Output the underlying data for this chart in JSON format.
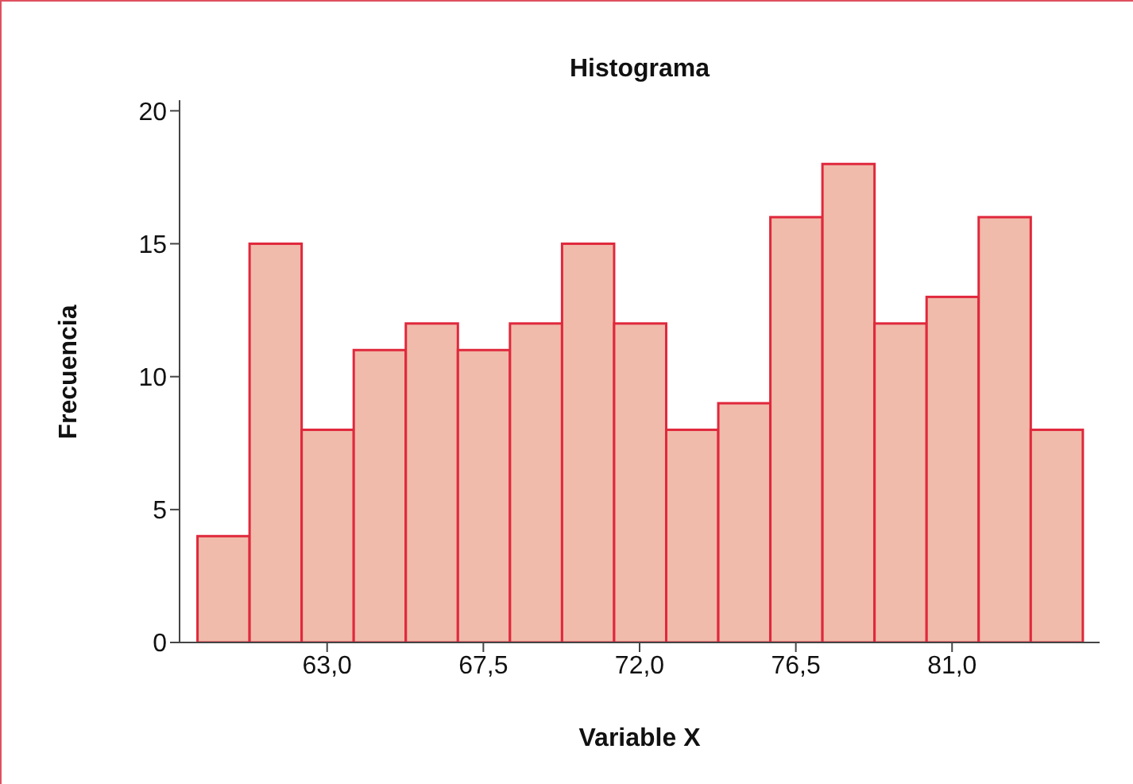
{
  "chart_data": {
    "type": "histogram",
    "title": "Histograma",
    "xlabel": "Variable X",
    "ylabel": "Frecuencia",
    "bins": [
      59.25,
      60.75,
      62.25,
      63.75,
      65.25,
      66.75,
      68.25,
      69.75,
      71.25,
      72.75,
      74.25,
      75.75,
      77.25,
      78.75,
      80.25,
      81.75,
      83.25,
      84.75
    ],
    "values": [
      4,
      15,
      8,
      11,
      12,
      11,
      12,
      15,
      12,
      8,
      9,
      16,
      18,
      12,
      13,
      16,
      8
    ],
    "color": "#f0bbab",
    "xlim": [
      58.75,
      85.25
    ],
    "xticks": [
      {
        "value": 63,
        "label": "63,0"
      },
      {
        "value": 67.5,
        "label": "67,5"
      },
      {
        "value": 72,
        "label": "72,0"
      },
      {
        "value": 76.5,
        "label": "76,5"
      },
      {
        "value": 81,
        "label": "81,0"
      }
    ],
    "ylim": [
      0,
      20.4
    ],
    "yticks": [
      0,
      5,
      10,
      15,
      20
    ]
  }
}
